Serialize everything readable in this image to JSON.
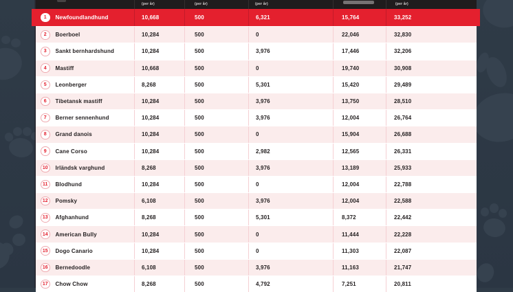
{
  "table": {
    "columns": [
      {
        "sub_label": ""
      },
      {
        "sub_label": "(per år)"
      },
      {
        "sub_label": "(per år)"
      },
      {
        "sub_label": "(per år)"
      },
      {
        "sub_label": ""
      },
      {
        "sub_label": "(per år)"
      }
    ],
    "rows": [
      {
        "rank": "1",
        "breed": "Newfoundlandhund",
        "values": [
          "10,668",
          "500",
          "6,321",
          "15,764",
          "33,252"
        ]
      },
      {
        "rank": "2",
        "breed": "Boerboel",
        "values": [
          "10,284",
          "500",
          "0",
          "22,046",
          "32,830"
        ]
      },
      {
        "rank": "3",
        "breed": "Sankt bernhardshund",
        "values": [
          "10,284",
          "500",
          "3,976",
          "17,446",
          "32,206"
        ]
      },
      {
        "rank": "4",
        "breed": "Mastiff",
        "values": [
          "10,668",
          "500",
          "0",
          "19,740",
          "30,908"
        ]
      },
      {
        "rank": "5",
        "breed": "Leonberger",
        "values": [
          "8,268",
          "500",
          "5,301",
          "15,420",
          "29,489"
        ]
      },
      {
        "rank": "6",
        "breed": "Tibetansk mastiff",
        "values": [
          "10,284",
          "500",
          "3,976",
          "13,750",
          "28,510"
        ]
      },
      {
        "rank": "7",
        "breed": "Berner sennenhund",
        "values": [
          "10,284",
          "500",
          "3,976",
          "12,004",
          "26,764"
        ]
      },
      {
        "rank": "8",
        "breed": "Grand danois",
        "values": [
          "10,284",
          "500",
          "0",
          "15,904",
          "26,688"
        ]
      },
      {
        "rank": "9",
        "breed": "Cane Corso",
        "values": [
          "10,284",
          "500",
          "2,982",
          "12,565",
          "26,331"
        ]
      },
      {
        "rank": "10",
        "breed": "Irländsk varghund",
        "values": [
          "8,268",
          "500",
          "3,976",
          "13,189",
          "25,933"
        ]
      },
      {
        "rank": "11",
        "breed": "Blodhund",
        "values": [
          "10,284",
          "500",
          "0",
          "12,004",
          "22,788"
        ]
      },
      {
        "rank": "12",
        "breed": "Pomsky",
        "values": [
          "6,108",
          "500",
          "3,976",
          "12,004",
          "22,588"
        ]
      },
      {
        "rank": "13",
        "breed": "Afghanhund",
        "values": [
          "8,268",
          "500",
          "5,301",
          "8,372",
          "22,442"
        ]
      },
      {
        "rank": "14",
        "breed": "American Bully",
        "values": [
          "10,284",
          "500",
          "0",
          "11,444",
          "22,228"
        ]
      },
      {
        "rank": "15",
        "breed": "Dogo Canario",
        "values": [
          "10,284",
          "500",
          "0",
          "11,303",
          "22,087"
        ]
      },
      {
        "rank": "16",
        "breed": "Bernedoodle",
        "values": [
          "6,108",
          "500",
          "3,976",
          "11,163",
          "21,747"
        ]
      },
      {
        "rank": "17",
        "breed": "Chow Chow",
        "values": [
          "8,268",
          "500",
          "4,792",
          "7,251",
          "20,811"
        ]
      }
    ]
  },
  "colors": {
    "accent_red": "#e4202e",
    "ribbon_divider_red": "#c41a29",
    "row_pink": "#fbecec",
    "row_white": "#ffffff",
    "divider_pink": "#f5cfd3",
    "header_dark": "#201c1d",
    "background_slate": "#2d3945",
    "paw_print": "#36424f",
    "text_dark": "#252122"
  }
}
